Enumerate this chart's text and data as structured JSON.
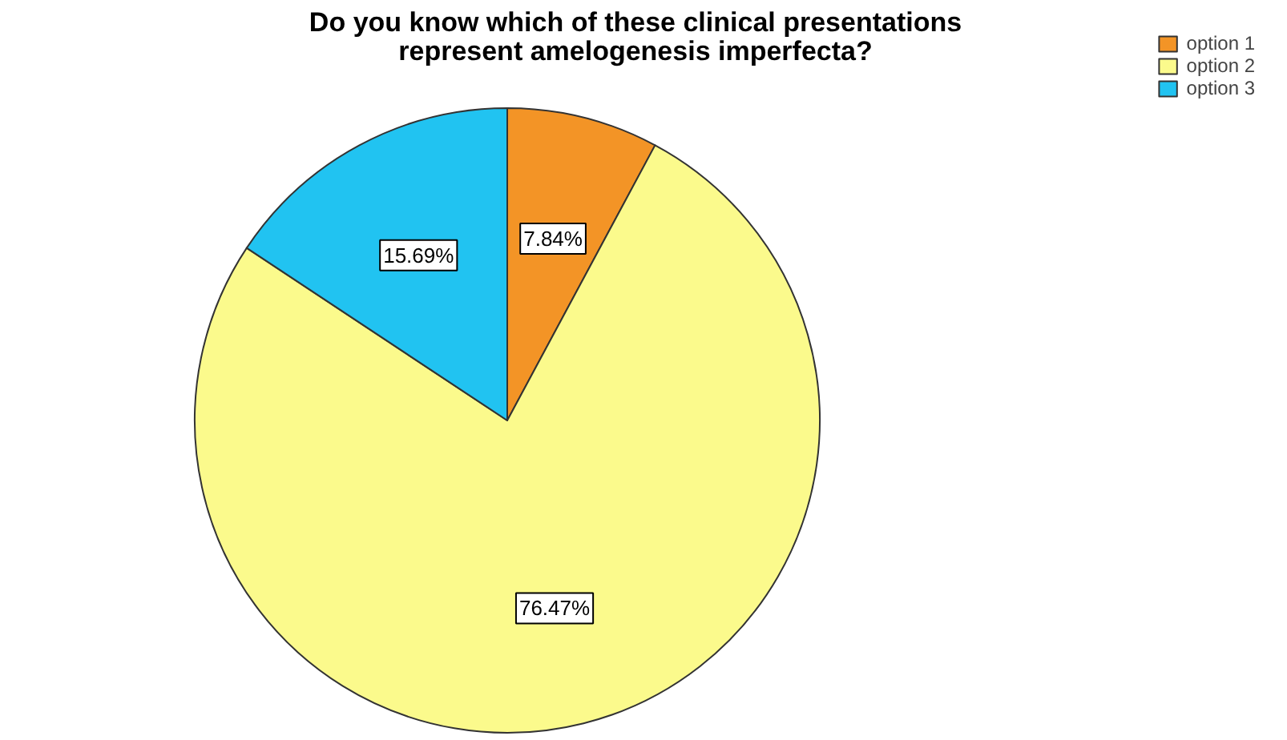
{
  "chart_data": {
    "type": "pie",
    "title": "Do you know which of these clinical presentations represent amelogenesis imperfecta?",
    "categories": [
      "option 1",
      "option 2",
      "option 3"
    ],
    "values": [
      7.84,
      76.47,
      15.69
    ],
    "colors": [
      "#f39426",
      "#fbfa8c",
      "#21c3f1"
    ],
    "value_labels": [
      "7.84%",
      "76.47%",
      "15.69%"
    ],
    "legend": "top right"
  }
}
